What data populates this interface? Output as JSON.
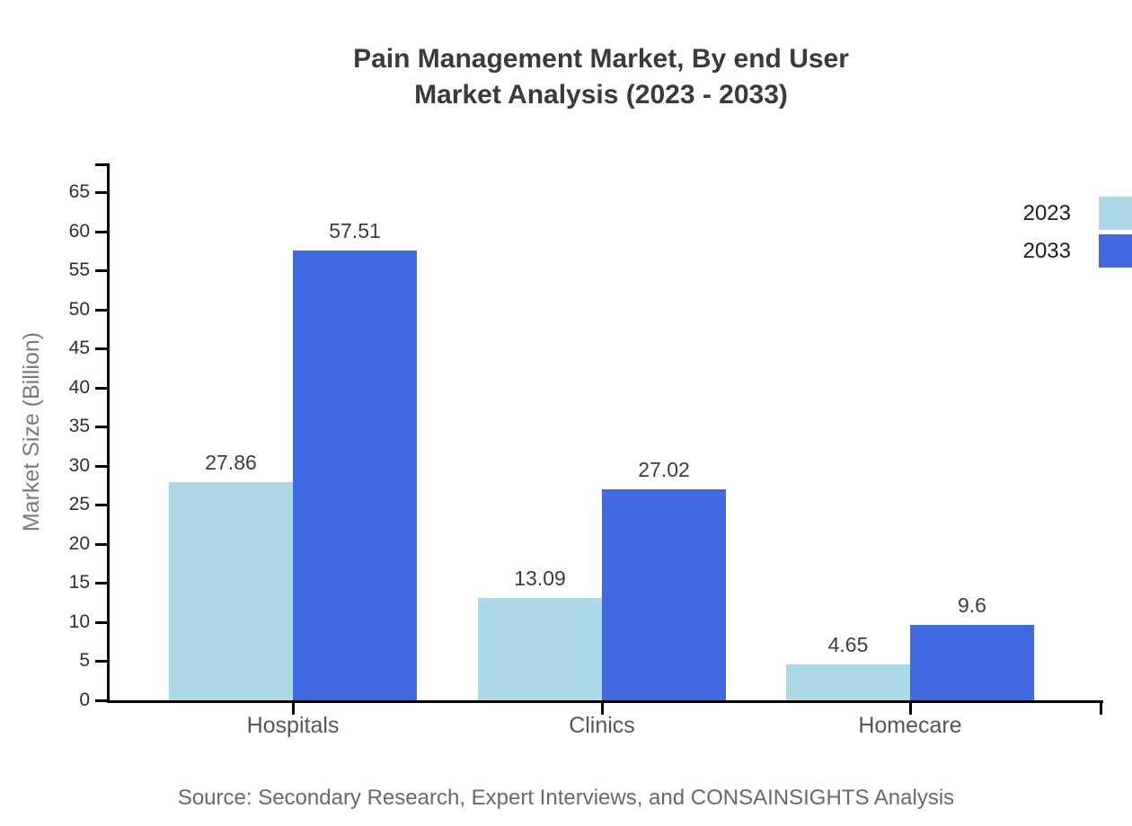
{
  "chart_data": {
    "type": "bar",
    "title": "Pain Management Market, By end User Market Analysis (2023 - 2033)",
    "title_lines": [
      "Pain Management Market, By end User",
      "Market Analysis (2023 - 2033)"
    ],
    "ylabel": "Market Size (Billion)",
    "categories": [
      "Hospitals",
      "Clinics",
      "Homecare"
    ],
    "series": [
      {
        "name": "2023",
        "color": "#ADD8E6",
        "values": [
          27.86,
          13.09,
          4.65
        ]
      },
      {
        "name": "2033",
        "color": "#4169E1",
        "values": [
          57.51,
          27.02,
          9.6
        ]
      }
    ],
    "ylim": [
      0,
      65
    ],
    "ytick_step": 5,
    "ytick_labels": [
      "0",
      "5",
      "10",
      "15",
      "20",
      "25",
      "30",
      "35",
      "40",
      "45",
      "50",
      "55",
      "60",
      "65"
    ],
    "grid": false,
    "legend_position": "top-right",
    "value_labels": true,
    "source": "Source: Secondary Research, Expert Interviews, and CONSAINSIGHTS Analysis"
  },
  "colors": {
    "background": "#ffffff",
    "axis": "#000000",
    "title_text": "#3a3a3a",
    "tick_label": "#2f2f2f",
    "value_label": "#3c3c3c",
    "category_label": "#565656",
    "axis_title": "#7a7a7a",
    "legend_label": "#1c1c1c",
    "source_text": "#696969",
    "series_2023": "#ADD8E6",
    "series_2033": "#4169E1"
  }
}
